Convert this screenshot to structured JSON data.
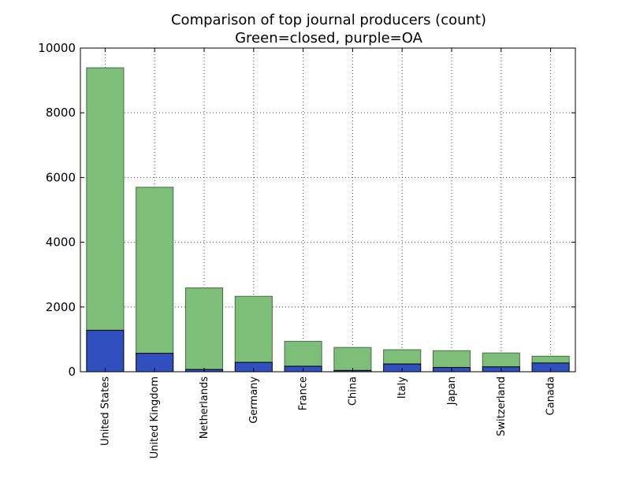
{
  "chart_data": {
    "type": "bar",
    "stacked": true,
    "title": "Comparison of top journal producers (count)",
    "subtitle": "Green=closed, purple=OA",
    "xlabel": "",
    "ylabel": "",
    "ylim": [
      0,
      10000
    ],
    "yticks": [
      0,
      2000,
      4000,
      6000,
      8000,
      10000
    ],
    "grid": true,
    "categories": [
      "United States",
      "United Kingdom",
      "Netherlands",
      "Germany",
      "France",
      "China",
      "Italy",
      "Japan",
      "Switzerland",
      "Canada"
    ],
    "series": [
      {
        "values": [
          1280,
          570,
          70,
          290,
          170,
          40,
          240,
          130,
          150,
          270
        ],
        "color": "#3050c0"
      },
      {
        "values": [
          8110,
          5130,
          2520,
          2040,
          770,
          710,
          440,
          520,
          430,
          210
        ],
        "color": "#7dbe78"
      }
    ],
    "totals": [
      9390,
      5700,
      2590,
      2330,
      940,
      750,
      680,
      650,
      580,
      480
    ]
  }
}
